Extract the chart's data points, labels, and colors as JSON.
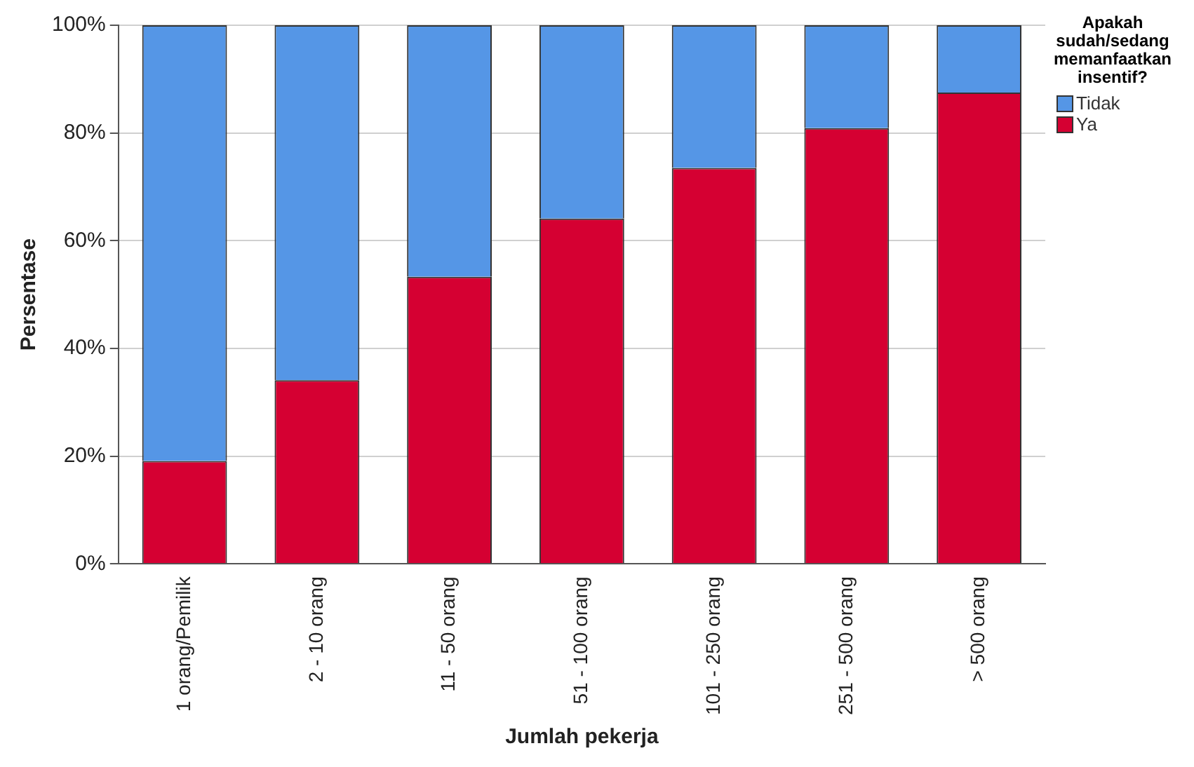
{
  "chart_data": {
    "type": "bar",
    "stacked": true,
    "xlabel": "Jumlah pekerja",
    "ylabel": "Persentase",
    "legend_title": "Apakah sudah/sedang memanfaatkan insentif?",
    "legend": "top right",
    "grid": "y",
    "categories": [
      "1 orang/Pemilik",
      "2 - 10 orang",
      "11 - 50 orang",
      "51 - 100 orang",
      "101 - 250 orang",
      "251 - 500 orang",
      "> 500 orang"
    ],
    "series": [
      {
        "name": "Ya",
        "color": "#d50032",
        "values": [
          19.1,
          34.1,
          53.3,
          64.1,
          73.5,
          80.9,
          87.5
        ]
      },
      {
        "name": "Tidak",
        "color": "#5596e6",
        "values": [
          80.9,
          65.9,
          46.7,
          35.9,
          26.5,
          19.1,
          12.5
        ]
      }
    ],
    "ylim": [
      0,
      100
    ],
    "yticks": [
      {
        "value": 0,
        "label": "0%"
      },
      {
        "value": 20,
        "label": "20%"
      },
      {
        "value": 40,
        "label": "40%"
      },
      {
        "value": 60,
        "label": "60%"
      },
      {
        "value": 80,
        "label": "80%"
      },
      {
        "value": 100,
        "label": "100%"
      }
    ]
  }
}
